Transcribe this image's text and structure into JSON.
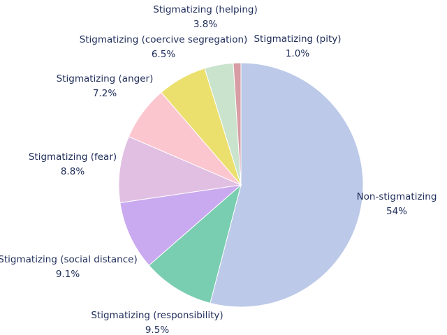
{
  "chart_data": {
    "type": "pie",
    "title": "",
    "slices": [
      {
        "label": "Non-stigmatizing",
        "value": 54,
        "value_label": "54%",
        "color": "#bcc9e8"
      },
      {
        "label": "Stigmatizing (responsibility)",
        "value": 9.5,
        "value_label": "9.5%",
        "color": "#79cdb0"
      },
      {
        "label": "Stigmatizing (social distance)",
        "value": 9.1,
        "value_label": "9.1%",
        "color": "#c9a9ef"
      },
      {
        "label": "Stigmatizing (fear)",
        "value": 8.8,
        "value_label": "8.8%",
        "color": "#e0bfe2"
      },
      {
        "label": "Stigmatizing (anger)",
        "value": 7.2,
        "value_label": "7.2%",
        "color": "#fcc6cf"
      },
      {
        "label": "Stigmatizing (coercive segregation)",
        "value": 6.5,
        "value_label": "6.5%",
        "color": "#ebe06e"
      },
      {
        "label": "Stigmatizing (helping)",
        "value": 3.8,
        "value_label": "3.8%",
        "color": "#c9e3cc"
      },
      {
        "label": "Stigmatizing (pity)",
        "value": 1.0,
        "value_label": "1.0%",
        "color": "#d79ca4"
      }
    ],
    "start_angle_deg": 90,
    "direction": "clockwise",
    "label_color": "#1f2d5a"
  }
}
